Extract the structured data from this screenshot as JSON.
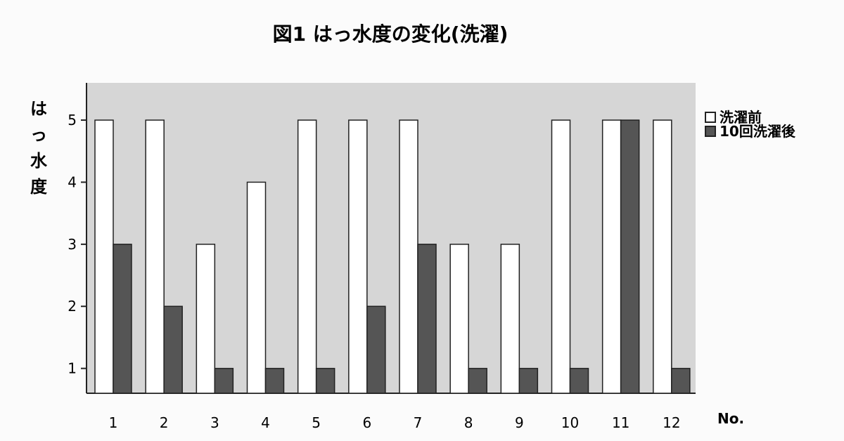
{
  "chart_data": {
    "type": "bar",
    "title": "図1 はっ水度の変化(洗濯)",
    "ylabel_chars": [
      "は",
      "っ",
      "水",
      "度"
    ],
    "xlabel": "No.",
    "categories": [
      "1",
      "2",
      "3",
      "4",
      "5",
      "6",
      "7",
      "8",
      "9",
      "10",
      "11",
      "12"
    ],
    "ylim": [
      0.6,
      5.6
    ],
    "yticks": [
      1,
      2,
      3,
      4,
      5
    ],
    "grid": false,
    "legend_position": "right",
    "series": [
      {
        "name": "洗濯前",
        "color": "#ffffff",
        "values": [
          5,
          5,
          3,
          4,
          5,
          5,
          5,
          3,
          3,
          5,
          5,
          5
        ]
      },
      {
        "name": "10回洗濯後",
        "color": "#555555",
        "values": [
          3,
          2,
          1,
          1,
          1,
          2,
          3,
          1,
          1,
          1,
          5,
          1
        ]
      }
    ],
    "plot_background": "#d6d6d6"
  }
}
